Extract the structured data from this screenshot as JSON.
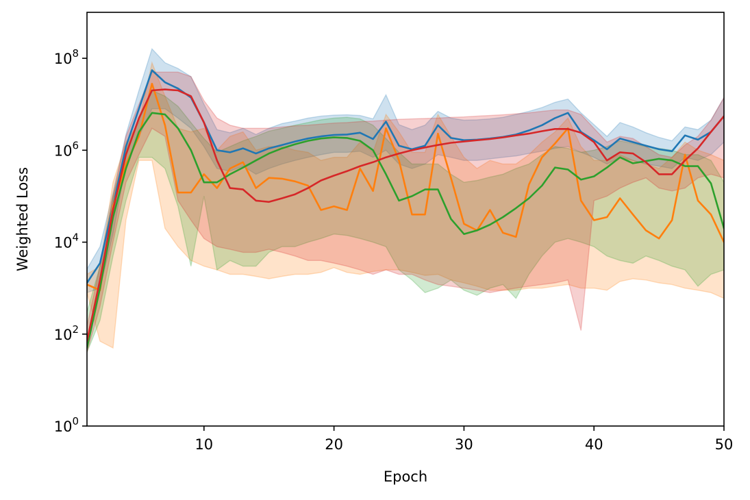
{
  "chart_data": {
    "type": "line",
    "title": "",
    "xlabel": "Epoch",
    "ylabel": "Weighted Loss",
    "xlim": [
      1,
      50
    ],
    "ylim": [
      1,
      1000000000
    ],
    "yscale": "log",
    "grid": false,
    "legend": "none",
    "x": [
      1,
      2,
      3,
      4,
      5,
      6,
      7,
      8,
      9,
      10,
      11,
      12,
      13,
      14,
      15,
      16,
      17,
      18,
      19,
      20,
      21,
      22,
      23,
      24,
      25,
      26,
      27,
      28,
      29,
      30,
      31,
      32,
      33,
      34,
      35,
      36,
      37,
      38,
      39,
      40,
      41,
      42,
      43,
      44,
      45,
      46,
      47,
      48,
      49,
      50
    ],
    "x_ticks": [
      10,
      20,
      30,
      40,
      50
    ],
    "x_tick_labels": [
      "10",
      "20",
      "30",
      "40",
      "50"
    ],
    "y_ticks": [
      1,
      100,
      10000,
      1000000,
      100000000
    ],
    "y_tick_labels": [
      {
        "base": "10",
        "exp": "0"
      },
      {
        "base": "10",
        "exp": "2"
      },
      {
        "base": "10",
        "exp": "4"
      },
      {
        "base": "10",
        "exp": "6"
      },
      {
        "base": "10",
        "exp": "8"
      }
    ],
    "series": [
      {
        "color": "#1f77b4",
        "values": [
          1300,
          3500,
          60000,
          1200000,
          8000000,
          55000000,
          30000000,
          22000000,
          14000000,
          4000000,
          1000000,
          900000,
          1100000,
          850000,
          1100000,
          1300000,
          1550000,
          1800000,
          2000000,
          2150000,
          2200000,
          2400000,
          1750000,
          4200000,
          1250000,
          1050000,
          1250000,
          3500000,
          1850000,
          1650000,
          1700000,
          1800000,
          1950000,
          2200000,
          2700000,
          3500000,
          5000000,
          6500000,
          2500000,
          1650000,
          1050000,
          1800000,
          1500000,
          1250000,
          1050000,
          950000,
          2100000,
          1700000,
          2500000,
          5500000
        ],
        "upper": [
          2600,
          8000,
          120000,
          2200000,
          20000000,
          160000000,
          80000000,
          60000000,
          40000000,
          10000000,
          2800000,
          2400000,
          3000000,
          2200000,
          3000000,
          3800000,
          4300000,
          5000000,
          5500000,
          5800000,
          5900000,
          5700000,
          4800000,
          16000000,
          3600000,
          2800000,
          3500000,
          7000000,
          5000000,
          4500000,
          4600000,
          4800000,
          5200000,
          6000000,
          7000000,
          8500000,
          11000000,
          13000000,
          6500000,
          3600000,
          2000000,
          4000000,
          3200000,
          2400000,
          1900000,
          1600000,
          3200000,
          2800000,
          4500000,
          14000000
        ],
        "lower": [
          800,
          1000,
          15000,
          500000,
          2000000,
          8000000,
          8000000,
          5000000,
          3000000,
          1200000,
          400000,
          350000,
          450000,
          300000,
          400000,
          500000,
          600000,
          700000,
          800000,
          900000,
          900000,
          950000,
          700000,
          1000000,
          500000,
          400000,
          500000,
          800000,
          700000,
          600000,
          600000,
          650000,
          700000,
          750000,
          850000,
          950000,
          1100000,
          1200000,
          900000,
          700000,
          500000,
          700000,
          600000,
          500000,
          450000,
          400000,
          700000,
          600000,
          800000,
          1500000
        ]
      },
      {
        "color": "#ff7f0e",
        "values": [
          1200,
          900,
          60000,
          500000,
          2000000,
          28000000,
          3500000,
          120000,
          120000,
          300000,
          150000,
          400000,
          550000,
          150000,
          250000,
          240000,
          210000,
          170000,
          50000,
          60000,
          50000,
          400000,
          130000,
          3000000,
          600000,
          40000,
          40000,
          2300000,
          250000,
          25000,
          18000,
          50000,
          16000,
          13000,
          180000,
          700000,
          1400000,
          3000000,
          80000,
          30000,
          35000,
          90000,
          40000,
          18000,
          12000,
          30000,
          800000,
          80000,
          40000,
          10000
        ],
        "upper": [
          2000,
          3000,
          200000,
          1500000,
          4000000,
          80000000,
          15000000,
          3000000,
          2500000,
          3000000,
          1000000,
          2000000,
          2500000,
          1000000,
          1200000,
          1200000,
          1000000,
          900000,
          600000,
          700000,
          700000,
          1500000,
          900000,
          6000000,
          2500000,
          900000,
          900000,
          6000000,
          2000000,
          700000,
          400000,
          600000,
          500000,
          500000,
          800000,
          1500000,
          2500000,
          5000000,
          1200000,
          600000,
          600000,
          800000,
          600000,
          500000,
          400000,
          700000,
          1500000,
          1000000,
          800000,
          600000
        ],
        "lower": [
          800,
          70,
          50,
          30000,
          600000,
          600000,
          20000,
          8000,
          4000,
          3000,
          2500,
          2000,
          2000,
          1800,
          1600,
          1800,
          2000,
          2000,
          2200,
          2800,
          2200,
          2000,
          2300,
          2500,
          2500,
          2200,
          1900,
          2000,
          1500,
          1300,
          1100,
          900,
          900,
          900,
          1000,
          1000,
          1100,
          1200,
          1000,
          1000,
          900,
          1400,
          1600,
          1500,
          1300,
          1200,
          1000,
          900,
          800,
          600
        ]
      },
      {
        "color": "#2ca02c",
        "values": [
          50,
          1000,
          35000,
          400000,
          2500000,
          6500000,
          6000000,
          3000000,
          1000000,
          200000,
          200000,
          300000,
          420000,
          600000,
          850000,
          1100000,
          1350000,
          1600000,
          1800000,
          1900000,
          1850000,
          1600000,
          1000000,
          300000,
          80000,
          100000,
          140000,
          140000,
          32000,
          15000,
          18000,
          24000,
          35000,
          55000,
          90000,
          170000,
          420000,
          380000,
          230000,
          270000,
          420000,
          700000,
          520000,
          580000,
          650000,
          600000,
          450000,
          450000,
          190000,
          20000
        ],
        "upper": [
          300,
          3000,
          100000,
          1000000,
          5000000,
          20000000,
          15000000,
          9000000,
          4000000,
          1800000,
          900000,
          1200000,
          1600000,
          2000000,
          2600000,
          3000000,
          3500000,
          4000000,
          4600000,
          5000000,
          5200000,
          4800000,
          3500000,
          1800000,
          900000,
          500000,
          500000,
          500000,
          300000,
          200000,
          220000,
          260000,
          300000,
          400000,
          500000,
          800000,
          1200000,
          1100000,
          900000,
          1000000,
          1200000,
          1600000,
          1400000,
          1200000,
          1100000,
          1000000,
          800000,
          800000,
          600000,
          200000
        ],
        "lower": [
          40,
          200,
          5000,
          80000,
          700000,
          700000,
          400000,
          60000,
          3000,
          100000,
          2500,
          4000,
          3000,
          3000,
          6000,
          8000,
          8000,
          10000,
          12000,
          15000,
          14000,
          12000,
          10000,
          8000,
          2500,
          1500,
          800,
          1000,
          1500,
          900,
          700,
          1000,
          1200,
          600,
          2000,
          5000,
          10000,
          12000,
          10000,
          8000,
          5000,
          4000,
          3500,
          5000,
          4000,
          3000,
          2500,
          1100,
          2000,
          2500
        ]
      },
      {
        "color": "#d62728",
        "values": [
          70,
          1500,
          50000,
          800000,
          5000000,
          20000000,
          21000000,
          20000000,
          15000000,
          4000000,
          600000,
          150000,
          140000,
          80000,
          75000,
          90000,
          110000,
          150000,
          220000,
          280000,
          350000,
          450000,
          550000,
          700000,
          850000,
          1000000,
          1150000,
          1300000,
          1450000,
          1550000,
          1650000,
          1750000,
          1900000,
          2100000,
          2300000,
          2600000,
          2900000,
          2900000,
          2400000,
          1500000,
          600000,
          900000,
          850000,
          550000,
          300000,
          300000,
          600000,
          1100000,
          2500000,
          5500000
        ],
        "upper": [
          150,
          3000,
          100000,
          2000000,
          10000000,
          50000000,
          50000000,
          50000000,
          40000000,
          12000000,
          5000000,
          3500000,
          3000000,
          3000000,
          3000000,
          3200000,
          3400000,
          3500000,
          3700000,
          3900000,
          4000000,
          4200000,
          4300000,
          4500000,
          4700000,
          4800000,
          4900000,
          5000000,
          5200000,
          5300000,
          5500000,
          5700000,
          5900000,
          6200000,
          6500000,
          7000000,
          7500000,
          7500000,
          6000000,
          3000000,
          1500000,
          2000000,
          1800000,
          1200000,
          800000,
          700000,
          1300000,
          2000000,
          4500000,
          14000000
        ],
        "lower": [
          40,
          400,
          10000,
          200000,
          800000,
          3000000,
          2000000,
          80000,
          30000,
          12000,
          8000,
          7000,
          6000,
          6000,
          7000,
          6000,
          5000,
          4000,
          4000,
          3500,
          3000,
          2500,
          2000,
          2500,
          2000,
          2000,
          1500,
          1200,
          1100,
          1000,
          900,
          800,
          900,
          1000,
          1100,
          1200,
          1300,
          1500,
          120,
          80000,
          100000,
          150000,
          200000,
          250000,
          150000,
          130000,
          150000,
          250000,
          300000,
          250000
        ]
      }
    ]
  }
}
